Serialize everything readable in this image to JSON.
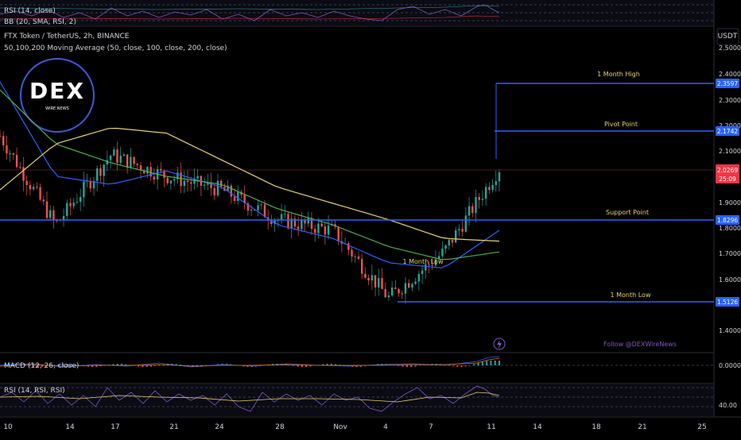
{
  "top_panel": {
    "indicator_1": "RSI (14, close)",
    "indicator_2": "BB (20, SMA, RSI, 2)"
  },
  "header": {
    "title": "FTX Token / TetherUS, 2h, BINANCE",
    "ma_legend": "50,100,200 Moving Average (50, close, 100, close, 200, close)"
  },
  "logo": {
    "text": "DEX",
    "subtext": "WIRE NEWS"
  },
  "axis": {
    "currency": "USDT",
    "price_ticks": [
      "2.5000",
      "2.4000",
      "2.3000",
      "2.2000",
      "2.1000",
      "1.9000",
      "1.8000",
      "1.7000",
      "1.6000",
      "1.4000"
    ],
    "date_ticks": [
      "10",
      "14",
      "17",
      "21",
      "24",
      "28",
      "Nov",
      "4",
      "7",
      "11",
      "14",
      "18",
      "21",
      "25"
    ]
  },
  "levels": [
    {
      "name": "1 Month High",
      "value": "2.3597",
      "color": "#2962ff"
    },
    {
      "name": "Pivot Point",
      "value": "2.1742",
      "color": "#2962ff"
    },
    {
      "name": "Support Point",
      "value": "1.8296",
      "color": "#2962ff"
    },
    {
      "name": "1 Month Low",
      "value": "1.5126",
      "color": "#2962ff"
    }
  ],
  "chart_annotation": "1 Month Low",
  "current_price": {
    "value": "2.0269",
    "countdown": "25:09",
    "color": "#f23645"
  },
  "follow_text": "Follow @DEXWireNews",
  "macd": {
    "label": "MACD (12, 26, close)",
    "value": "0.0000"
  },
  "rsi": {
    "label": "RSI (14, RSI, RSI)",
    "value": "40.00"
  },
  "chart_data": {
    "type": "line",
    "title": "FTX Token / TetherUS, 2h, BINANCE",
    "x_dates": [
      "10",
      "14",
      "17",
      "21",
      "24",
      "28",
      "Nov 1",
      "4",
      "7",
      "11"
    ],
    "series": [
      {
        "name": "price",
        "color": "#26a69a",
        "values": [
          2.15,
          1.82,
          2.08,
          2.0,
          1.95,
          1.84,
          1.8,
          1.55,
          1.72,
          2.03
        ]
      },
      {
        "name": "50",
        "color": "#2962ff",
        "values": [
          2.35,
          2.0,
          1.97,
          2.02,
          1.96,
          1.82,
          1.77,
          1.68,
          1.66,
          1.8
        ]
      },
      {
        "name": "100",
        "color": "#4caf50",
        "values": [
          2.32,
          2.12,
          2.05,
          2.0,
          1.97,
          1.88,
          1.82,
          1.74,
          1.69,
          1.72
        ]
      },
      {
        "name": "200",
        "color": "#e8d16a",
        "values": [
          1.95,
          2.12,
          2.18,
          2.16,
          2.06,
          1.96,
          1.9,
          1.84,
          1.77,
          1.76
        ]
      }
    ],
    "ylim": [
      1.35,
      2.55
    ],
    "grid": false
  }
}
